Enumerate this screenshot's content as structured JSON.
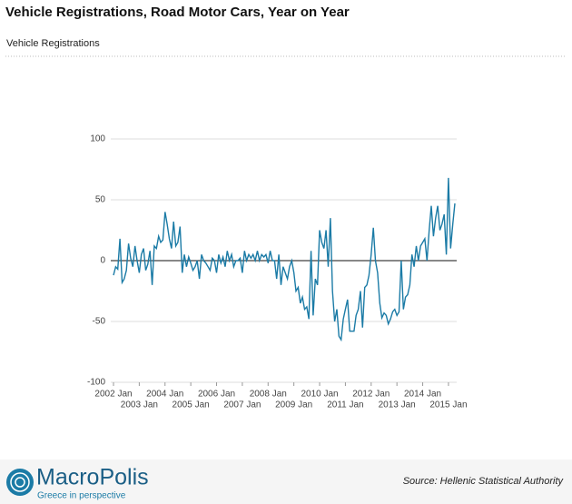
{
  "chart_data": {
    "type": "line",
    "title": "Vehicle Registrations, Road Motor Cars, Year on Year",
    "subtitle": "Vehicle Registrations",
    "categories": [
      "2002 Jan",
      null,
      null,
      null,
      null,
      null,
      null,
      null,
      null,
      null,
      null,
      null,
      "2003 Jan",
      null,
      null,
      null,
      null,
      null,
      null,
      null,
      null,
      null,
      null,
      null,
      "2004 Jan",
      null,
      null,
      null,
      null,
      null,
      null,
      null,
      null,
      null,
      null,
      null,
      "2005 Jan",
      null,
      null,
      null,
      null,
      null,
      null,
      null,
      null,
      null,
      null,
      null,
      "2006 Jan",
      null,
      null,
      null,
      null,
      null,
      null,
      null,
      null,
      null,
      null,
      null,
      "2007 Jan",
      null,
      null,
      null,
      null,
      null,
      null,
      null,
      null,
      null,
      null,
      null,
      "2008 Jan",
      null,
      null,
      null,
      null,
      null,
      null,
      null,
      null,
      null,
      null,
      null,
      "2009 Jan",
      null,
      null,
      null,
      null,
      null,
      null,
      null,
      null,
      null,
      null,
      null,
      "2010 Jan",
      null,
      null,
      null,
      null,
      null,
      null,
      null,
      null,
      null,
      null,
      null,
      "2011 Jan",
      null,
      null,
      null,
      null,
      null,
      null,
      null,
      null,
      null,
      null,
      null,
      "2012 Jan",
      null,
      null,
      null,
      null,
      null,
      null,
      null,
      null,
      null,
      null,
      null,
      "2013 Jan",
      null,
      null,
      null,
      null,
      null,
      null,
      null,
      null,
      null,
      null,
      null,
      "2014 Jan",
      null,
      null,
      null,
      null,
      null,
      null,
      null,
      null,
      null,
      null,
      null,
      "2015 Jan",
      null,
      null,
      null
    ],
    "values": [
      -12,
      -5,
      -7,
      18,
      -18,
      -15,
      -8,
      14,
      2,
      -5,
      12,
      0,
      -10,
      5,
      10,
      -8,
      -3,
      8,
      -20,
      12,
      10,
      20,
      15,
      17,
      40,
      30,
      18,
      10,
      32,
      12,
      15,
      28,
      -10,
      5,
      -5,
      3,
      -2,
      -8,
      -5,
      0,
      -15,
      5,
      0,
      -2,
      -5,
      -8,
      2,
      0,
      -10,
      5,
      -2,
      3,
      -5,
      8,
      0,
      5,
      -5,
      0,
      0,
      2,
      -10,
      8,
      0,
      5,
      2,
      5,
      0,
      8,
      0,
      5,
      3,
      5,
      -2,
      8,
      0,
      0,
      -15,
      5,
      -20,
      -5,
      -10,
      -15,
      -5,
      0,
      -10,
      -25,
      -22,
      -35,
      -30,
      -40,
      -38,
      -48,
      8,
      -45,
      -15,
      -20,
      25,
      15,
      10,
      25,
      -5,
      35,
      -25,
      -50,
      -40,
      -62,
      -65,
      -48,
      -40,
      -32,
      -58,
      -58,
      -58,
      -45,
      -40,
      -25,
      -55,
      -22,
      -20,
      -12,
      5,
      27,
      0,
      -10,
      -35,
      -47,
      -43,
      -45,
      -52,
      -48,
      -42,
      -40,
      -45,
      -42,
      0,
      -40,
      -30,
      -28,
      -20,
      5,
      -5,
      12,
      0,
      12,
      15,
      18,
      0,
      25,
      45,
      20,
      35,
      45,
      25,
      30,
      38,
      5,
      68,
      10,
      30,
      47
    ],
    "color": "#1b7ba6",
    "ylim": [
      -100,
      100
    ],
    "yticks": [
      100,
      50,
      0,
      -50,
      -100
    ],
    "grid": true
  },
  "footer": {
    "logo": "MacroPolis",
    "tagline": "Greece in perspective",
    "source": "Source: Hellenic Statistical Authority"
  }
}
